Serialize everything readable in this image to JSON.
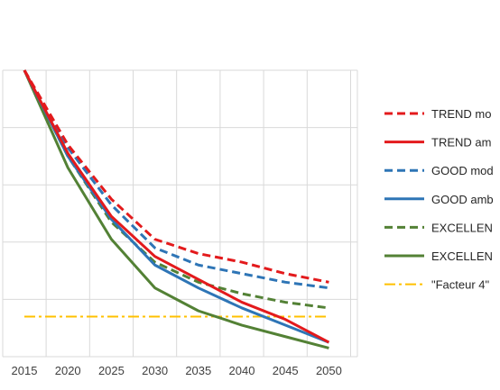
{
  "chart_data": {
    "type": "line",
    "title": "",
    "xlabel": "",
    "ylabel": "",
    "x": [
      2015,
      2020,
      2025,
      2030,
      2035,
      2040,
      2045,
      2050
    ],
    "y_range": [
      0,
      100
    ],
    "y_tick_labels_shown": false,
    "grid": "on",
    "legend_placement": "right",
    "series": [
      {
        "name": "TREND mo",
        "color": "#e31a1c",
        "dash": "dashed",
        "values": [
          100,
          74,
          55,
          41,
          36,
          33,
          29,
          26
        ]
      },
      {
        "name": "TREND am",
        "color": "#e31a1c",
        "dash": "solid",
        "values": [
          100,
          71,
          49,
          35,
          27,
          19,
          13,
          5
        ]
      },
      {
        "name": "GOOD mod",
        "color": "#2e75b6",
        "dash": "dashed",
        "values": [
          100,
          73,
          53,
          38,
          32,
          29,
          26,
          24
        ]
      },
      {
        "name": "GOOD amb",
        "color": "#2e75b6",
        "dash": "solid",
        "values": [
          100,
          70,
          48,
          32,
          24,
          17,
          11,
          5
        ]
      },
      {
        "name": "EXCELLEN",
        "color": "#538135",
        "dash": "dashed",
        "values": [
          100,
          70,
          47,
          33,
          26,
          22,
          19,
          17
        ]
      },
      {
        "name": "EXCELLEN",
        "color": "#538135",
        "dash": "solid",
        "values": [
          100,
          66,
          41,
          24,
          16,
          11,
          7,
          3
        ]
      },
      {
        "name": "\"Facteur 4\"",
        "color": "#ffc000",
        "dash": "dashdot",
        "values": [
          14,
          14,
          14,
          14,
          14,
          14,
          14,
          14
        ]
      }
    ]
  }
}
